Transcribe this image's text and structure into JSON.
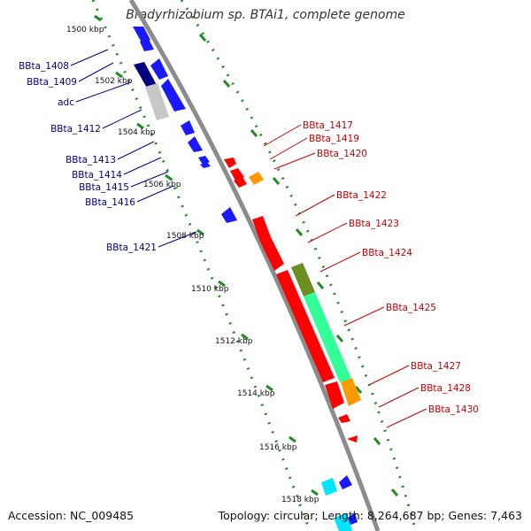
{
  "title": "Bradyrhizobium sp. BTAi1, complete genome",
  "accession": "Accession: NC_009485",
  "topology": "Topology: circular; Length: 8,264,687 bp; Genes: 7,463",
  "colors": {
    "backbone": "#8c8c8c",
    "tick_marks": "#228B22",
    "left_label_text": "#00008B",
    "right_label_text": "#CC0000",
    "gene_blue": "#1a1aff",
    "gene_navy": "#000080",
    "gene_gray": "#c8c8c8",
    "gene_cyan": "#00e5ff",
    "gene_red": "#ff0000",
    "gene_orange": "#ff9900",
    "gene_olive": "#6b8e23",
    "gene_mint": "#00ffaa"
  },
  "position_labels": [
    "1500 kbp",
    "1502 kbp",
    "1504 kbp",
    "1506 kbp",
    "1508 kbp",
    "1510 kbp",
    "1512 kbp",
    "1514 kbp",
    "1516 kbp",
    "1518 kbp"
  ],
  "left_genes": [
    "BBta_1408",
    "BBta_1409",
    "adc",
    "BBta_1412",
    "BBta_1413",
    "BBta_1414",
    "BBta_1415",
    "BBta_1416",
    "BBta_1421"
  ],
  "right_genes": [
    "BBta_1417",
    "BBta_1419",
    "BBta_1420",
    "BBta_1422",
    "BBta_1423",
    "BBta_1424",
    "BBta_1425",
    "BBta_1427",
    "BBta_1428",
    "BBta_1430"
  ]
}
